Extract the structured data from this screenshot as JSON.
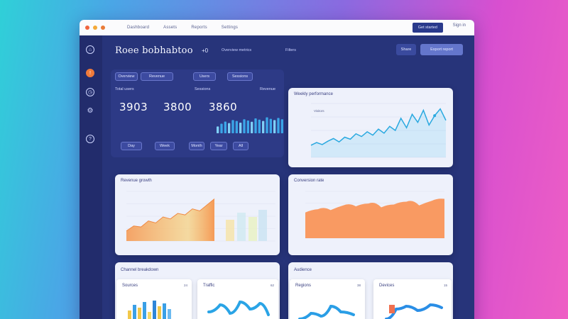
{
  "titlebar": {
    "menu": [
      "Dashboard",
      "Assets",
      "Reports",
      "Settings"
    ],
    "cta_label": "Get started",
    "link_label": "Sign in"
  },
  "header": {
    "title": "Roee bobhabtoo",
    "title_extra": "+0",
    "links": [
      "Overview metrics",
      "Filters"
    ],
    "buttons": [
      "Share",
      "Export report"
    ]
  },
  "sidebar": {
    "icons": [
      "home-icon",
      "alert-icon",
      "clock-icon",
      "settings-icon",
      "help-icon"
    ]
  },
  "kpi_panel": {
    "filters": [
      "Overview",
      "Revenue",
      "Users",
      "Sessions"
    ],
    "labels": [
      "Total users",
      "Sessions",
      "Revenue"
    ],
    "values": [
      "3903",
      "3800",
      "3860"
    ],
    "pills": [
      "Day",
      "Week",
      "Month",
      "Year",
      "All"
    ],
    "bar_values": [
      0.32,
      0.45,
      0.55,
      0.48,
      0.62,
      0.58,
      0.5,
      0.66,
      0.6,
      0.54,
      0.7,
      0.64,
      0.58,
      0.75,
      0.68,
      0.62,
      0.72,
      0.66
    ]
  },
  "line_card": {
    "title": "Weekly performance",
    "legend": "Visitors",
    "values": [
      18,
      22,
      19,
      24,
      28,
      23,
      30,
      27,
      35,
      31,
      38,
      33,
      42,
      36,
      46,
      40,
      58,
      44,
      64,
      52,
      70,
      48,
      62,
      72,
      55
    ],
    "accent": "#2aa9e0"
  },
  "area_card_left": {
    "title": "Revenue growth",
    "values": [
      20,
      30,
      28,
      40,
      36,
      48,
      44,
      55,
      52,
      64,
      60,
      72,
      84
    ],
    "colors": [
      "#f59a56",
      "#f6cf7a",
      "#b8e0e8"
    ]
  },
  "area_card_right": {
    "title": "Conversion rate",
    "values": [
      55,
      62,
      60,
      70,
      68,
      74,
      66,
      72,
      78,
      70,
      80,
      84
    ]
  },
  "bottom_left": {
    "title": "Channel breakdown",
    "card1": {
      "title": "Sources",
      "value": "24"
    },
    "card2": {
      "title": "Traffic",
      "value": "62"
    }
  },
  "bottom_right": {
    "title": "Audience",
    "card1": {
      "title": "Regions",
      "value": "38"
    },
    "card2": {
      "title": "Devices",
      "value": "15"
    }
  }
}
